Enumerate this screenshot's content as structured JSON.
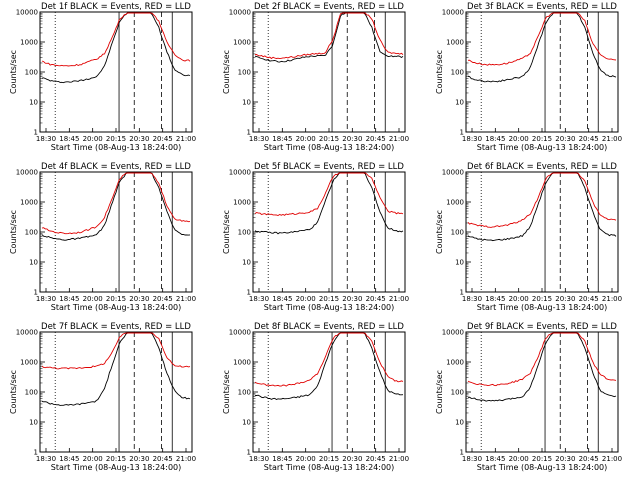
{
  "figure": {
    "xlabel": "Start Time (08-Aug-13 18:24:00)",
    "ylabel": "Counts/sec",
    "x_tick_labels": [
      "18:30",
      "18:45",
      "20:00",
      "20:15",
      "20:30",
      "20:45",
      "21:00"
    ]
  },
  "chart_data": [
    {
      "type": "line",
      "title": "Det 1f BLACK = Events, RED = LLD",
      "xlabel": "Start Time (08-Aug-13 18:24:00)",
      "ylabel": "Counts/sec",
      "x_ticks": [
        "18:30",
        "18:45",
        "20:00",
        "20:15",
        "20:30",
        "20:45",
        "21:00"
      ],
      "y_ticks": [
        "1",
        "10",
        "100",
        "1000",
        "10000"
      ],
      "yscale": "log",
      "ylim": [
        1,
        10000
      ],
      "colors": {
        "events": "#000000",
        "lld": "#e00000"
      },
      "series": [
        {
          "name": "Events",
          "color": "#000000",
          "y": [
            65,
            52,
            47,
            46,
            48,
            52,
            60,
            70,
            150,
            900,
            5000,
            10000,
            10000,
            10000,
            10000,
            3000,
            500,
            120,
            80,
            75
          ]
        },
        {
          "name": "LLD",
          "color": "#e00000",
          "y": [
            230,
            180,
            165,
            160,
            165,
            180,
            220,
            270,
            400,
            1400,
            6000,
            10000,
            10000,
            10000,
            10000,
            5000,
            1000,
            400,
            250,
            240
          ]
        }
      ]
    },
    {
      "type": "line",
      "title": "Det 2f BLACK = Events, RED = LLD",
      "xlabel": "Start Time (08-Aug-13 18:24:00)",
      "ylabel": "Counts/sec",
      "x_ticks": [
        "18:30",
        "18:45",
        "20:00",
        "20:15",
        "20:30",
        "20:45",
        "21:00"
      ],
      "y_ticks": [
        "1",
        "10",
        "100",
        "1000",
        "10000"
      ],
      "yscale": "log",
      "ylim": [
        1,
        10000
      ],
      "colors": {
        "events": "#000000",
        "lld": "#e00000"
      },
      "series": [
        {
          "name": "Events",
          "color": "#000000",
          "y": [
            320,
            280,
            240,
            220,
            230,
            260,
            300,
            330,
            340,
            350,
            800,
            8000,
            10000,
            10000,
            10000,
            3000,
            500,
            350,
            330,
            320
          ]
        },
        {
          "name": "LLD",
          "color": "#e00000",
          "y": [
            380,
            340,
            300,
            290,
            300,
            320,
            360,
            390,
            410,
            430,
            1200,
            9000,
            10000,
            10000,
            10000,
            6000,
            1200,
            450,
            420,
            400
          ]
        }
      ]
    },
    {
      "type": "line",
      "title": "Det 3f BLACK = Events, RED = LLD",
      "xlabel": "Start Time (08-Aug-13 18:24:00)",
      "ylabel": "Counts/sec",
      "x_ticks": [
        "18:30",
        "18:45",
        "20:00",
        "20:15",
        "20:30",
        "20:45",
        "21:00"
      ],
      "y_ticks": [
        "1",
        "10",
        "100",
        "1000",
        "10000"
      ],
      "yscale": "log",
      "ylim": [
        1,
        10000
      ],
      "colors": {
        "events": "#000000",
        "lld": "#e00000"
      },
      "series": [
        {
          "name": "Events",
          "color": "#000000",
          "y": [
            70,
            55,
            50,
            48,
            50,
            55,
            62,
            70,
            140,
            800,
            4500,
            10000,
            10000,
            10000,
            10000,
            3000,
            450,
            110,
            75,
            70
          ]
        },
        {
          "name": "LLD",
          "color": "#e00000",
          "y": [
            250,
            200,
            180,
            175,
            180,
            195,
            230,
            280,
            420,
            1500,
            6500,
            10000,
            10000,
            10000,
            10000,
            5000,
            900,
            380,
            260,
            250
          ]
        }
      ]
    },
    {
      "type": "line",
      "title": "Det 4f BLACK = Events, RED = LLD",
      "xlabel": "Start Time (08-Aug-13 18:24:00)",
      "ylabel": "Counts/sec",
      "x_ticks": [
        "18:30",
        "18:45",
        "20:00",
        "20:15",
        "20:30",
        "20:45",
        "21:00"
      ],
      "y_ticks": [
        "1",
        "10",
        "100",
        "1000",
        "10000"
      ],
      "yscale": "log",
      "ylim": [
        1,
        10000
      ],
      "colors": {
        "events": "#000000",
        "lld": "#e00000"
      },
      "series": [
        {
          "name": "Events",
          "color": "#000000",
          "y": [
            80,
            65,
            58,
            55,
            58,
            62,
            70,
            80,
            160,
            900,
            5000,
            10000,
            10000,
            10000,
            10000,
            3000,
            500,
            120,
            85,
            80
          ]
        },
        {
          "name": "LLD",
          "color": "#e00000",
          "y": [
            140,
            110,
            95,
            90,
            92,
            100,
            120,
            150,
            300,
            1300,
            6000,
            10000,
            10000,
            10000,
            10000,
            4000,
            800,
            280,
            230,
            220
          ]
        }
      ]
    },
    {
      "type": "line",
      "title": "Det 5f BLACK = Events, RED = LLD",
      "xlabel": "Start Time (08-Aug-13 18:24:00)",
      "ylabel": "Counts/sec",
      "x_ticks": [
        "18:30",
        "18:45",
        "20:00",
        "20:15",
        "20:30",
        "20:45",
        "21:00"
      ],
      "y_ticks": [
        "1",
        "10",
        "100",
        "1000",
        "10000"
      ],
      "yscale": "log",
      "ylim": [
        1,
        10000
      ],
      "colors": {
        "events": "#000000",
        "lld": "#e00000"
      },
      "series": [
        {
          "name": "Events",
          "color": "#000000",
          "y": [
            110,
            100,
            95,
            92,
            95,
            100,
            110,
            120,
            200,
            1000,
            5000,
            10000,
            10000,
            10000,
            10000,
            3000,
            500,
            140,
            110,
            105
          ]
        },
        {
          "name": "LLD",
          "color": "#e00000",
          "y": [
            430,
            400,
            380,
            370,
            380,
            400,
            430,
            460,
            600,
            1800,
            7000,
            10000,
            10000,
            10000,
            10000,
            6000,
            1500,
            500,
            430,
            420
          ]
        }
      ]
    },
    {
      "type": "line",
      "title": "Det 6f BLACK = Events, RED = LLD",
      "xlabel": "Start Time (08-Aug-13 18:24:00)",
      "ylabel": "Counts/sec",
      "x_ticks": [
        "18:30",
        "18:45",
        "20:00",
        "20:15",
        "20:30",
        "20:45",
        "21:00"
      ],
      "y_ticks": [
        "1",
        "10",
        "100",
        "1000",
        "10000"
      ],
      "yscale": "log",
      "ylim": [
        1,
        10000
      ],
      "colors": {
        "events": "#000000",
        "lld": "#e00000"
      },
      "series": [
        {
          "name": "Events",
          "color": "#000000",
          "y": [
            75,
            60,
            55,
            52,
            55,
            58,
            65,
            75,
            150,
            850,
            4500,
            10000,
            10000,
            10000,
            10000,
            3000,
            480,
            115,
            80,
            75
          ]
        },
        {
          "name": "LLD",
          "color": "#e00000",
          "y": [
            200,
            170,
            155,
            150,
            155,
            170,
            200,
            250,
            400,
            1400,
            6000,
            10000,
            10000,
            10000,
            10000,
            5000,
            1000,
            350,
            270,
            260
          ]
        }
      ]
    },
    {
      "type": "line",
      "title": "Det 7f BLACK = Events, RED = LLD",
      "xlabel": "Start Time (08-Aug-13 18:24:00)",
      "ylabel": "Counts/sec",
      "x_ticks": [
        "18:30",
        "18:45",
        "20:00",
        "20:15",
        "20:30",
        "20:45",
        "21:00"
      ],
      "y_ticks": [
        "1",
        "10",
        "100",
        "1000",
        "10000"
      ],
      "yscale": "log",
      "ylim": [
        1,
        10000
      ],
      "colors": {
        "events": "#000000",
        "lld": "#e00000"
      },
      "series": [
        {
          "name": "Events",
          "color": "#000000",
          "y": [
            50,
            42,
            38,
            36,
            38,
            40,
            45,
            50,
            120,
            800,
            4500,
            10000,
            10000,
            10000,
            10000,
            3000,
            450,
            110,
            65,
            60
          ]
        },
        {
          "name": "LLD",
          "color": "#e00000",
          "y": [
            700,
            650,
            620,
            610,
            620,
            640,
            680,
            720,
            900,
            2000,
            7000,
            10000,
            10000,
            10000,
            10000,
            6000,
            1500,
            750,
            700,
            690
          ]
        }
      ]
    },
    {
      "type": "line",
      "title": "Det 8f BLACK = Events, RED = LLD",
      "xlabel": "Start Time (08-Aug-13 18:24:00)",
      "ylabel": "Counts/sec",
      "x_ticks": [
        "18:30",
        "18:45",
        "20:00",
        "20:15",
        "20:30",
        "20:45",
        "21:00"
      ],
      "y_ticks": [
        "1",
        "10",
        "100",
        "1000",
        "10000"
      ],
      "yscale": "log",
      "ylim": [
        1,
        10000
      ],
      "colors": {
        "events": "#000000",
        "lld": "#e00000"
      },
      "series": [
        {
          "name": "Events",
          "color": "#000000",
          "y": [
            80,
            68,
            60,
            58,
            60,
            64,
            72,
            80,
            150,
            850,
            4500,
            10000,
            10000,
            10000,
            10000,
            3000,
            480,
            115,
            85,
            80
          ]
        },
        {
          "name": "LLD",
          "color": "#e00000",
          "y": [
            210,
            180,
            165,
            160,
            165,
            180,
            210,
            250,
            400,
            1400,
            6000,
            10000,
            10000,
            10000,
            10000,
            5000,
            1000,
            350,
            230,
            220
          ]
        }
      ]
    },
    {
      "type": "line",
      "title": "Det 9f BLACK = Events, RED = LLD",
      "xlabel": "Start Time (08-Aug-13 18:24:00)",
      "ylabel": "Counts/sec",
      "x_ticks": [
        "18:30",
        "18:45",
        "20:00",
        "20:15",
        "20:30",
        "20:45",
        "21:00"
      ],
      "y_ticks": [
        "1",
        "10",
        "100",
        "1000",
        "10000"
      ],
      "yscale": "log",
      "ylim": [
        1,
        10000
      ],
      "colors": {
        "events": "#000000",
        "lld": "#e00000"
      },
      "series": [
        {
          "name": "Events",
          "color": "#000000",
          "y": [
            70,
            58,
            52,
            50,
            52,
            56,
            62,
            70,
            140,
            800,
            4500,
            10000,
            10000,
            10000,
            10000,
            3000,
            450,
            110,
            75,
            70
          ]
        },
        {
          "name": "LLD",
          "color": "#e00000",
          "y": [
            230,
            190,
            175,
            170,
            175,
            190,
            220,
            270,
            420,
            1500,
            6500,
            10000,
            10000,
            10000,
            10000,
            5000,
            1000,
            380,
            260,
            250
          ]
        }
      ]
    }
  ]
}
